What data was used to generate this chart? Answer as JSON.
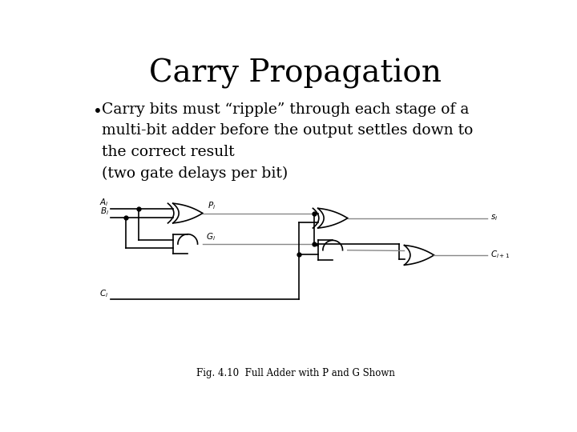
{
  "title": "Carry Propagation",
  "title_fontsize": 28,
  "title_font": "serif",
  "bullet_text": "Carry bits must “ripple” through each stage of a\nmulti-bit adder before the output settles down to\nthe correct result\n(two gate delays per bit)",
  "bullet_fontsize": 13.5,
  "caption": "Fig. 4.10  Full Adder with P and G Shown",
  "caption_fontsize": 8.5,
  "background_color": "#ffffff",
  "text_color": "#000000",
  "line_color": "#000000",
  "wire_color": "#888888",
  "lw": 1.2,
  "wire_lw": 1.0
}
